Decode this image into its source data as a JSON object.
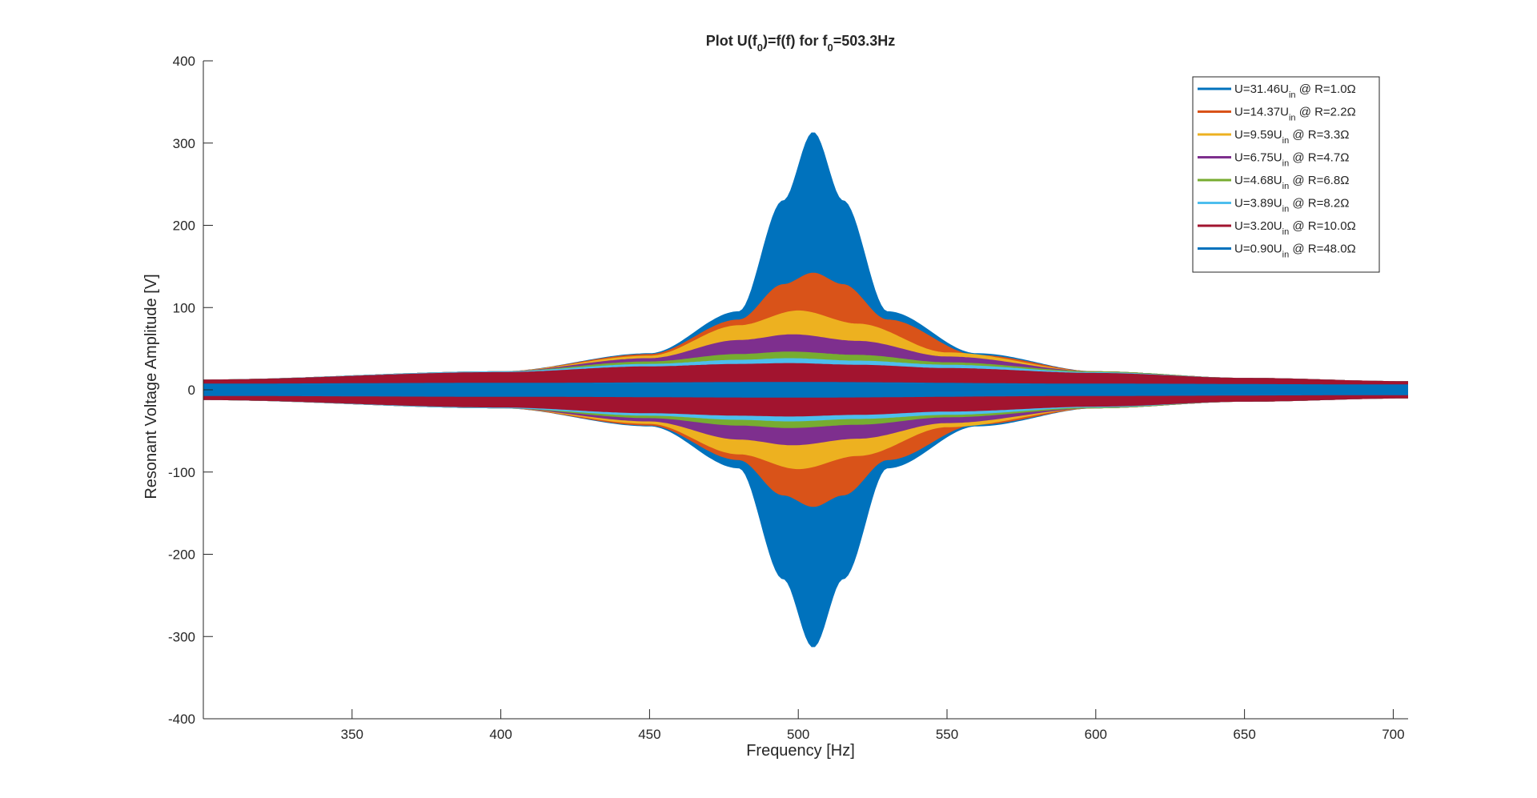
{
  "chart_data": {
    "type": "area",
    "title": {
      "pre": "Plot U(f",
      "sub1": "0",
      "mid": ")=f(f) for f",
      "sub2": "0",
      "post": "=503.3Hz"
    },
    "xlabel": "Frequency [Hz]",
    "ylabel": "Resonant Voltage Amplitude [V]",
    "xlim": [
      300,
      705
    ],
    "ylim": [
      -400,
      400
    ],
    "xticks": [
      350,
      400,
      450,
      500,
      550,
      600,
      650,
      700
    ],
    "yticks": [
      400,
      300,
      200,
      100,
      0,
      -100,
      -200,
      -300,
      -400
    ],
    "f0": 503.3,
    "grid": false,
    "legend_position": "top-right",
    "series": [
      {
        "label_pre": "U=31.46U",
        "label_sub": "in",
        "label_post": " @ R=1.0Ω",
        "peak": 313,
        "peak_freq": 505,
        "color": "#0072BD",
        "envelope": [
          [
            300,
            12
          ],
          [
            400,
            22
          ],
          [
            450,
            44
          ],
          [
            480,
            95
          ],
          [
            495,
            230
          ],
          [
            505,
            313
          ],
          [
            515,
            230
          ],
          [
            530,
            95
          ],
          [
            560,
            44
          ],
          [
            600,
            22
          ],
          [
            650,
            14
          ],
          [
            705,
            10
          ]
        ]
      },
      {
        "label_pre": "U=14.37U",
        "label_sub": "in",
        "label_post": " @ R=2.2Ω",
        "peak": 142,
        "peak_freq": 505,
        "color": "#D95319",
        "envelope": [
          [
            300,
            12
          ],
          [
            400,
            22
          ],
          [
            450,
            43
          ],
          [
            480,
            85
          ],
          [
            495,
            128
          ],
          [
            505,
            142
          ],
          [
            515,
            128
          ],
          [
            530,
            85
          ],
          [
            560,
            42
          ],
          [
            600,
            22
          ],
          [
            650,
            14
          ],
          [
            705,
            10
          ]
        ]
      },
      {
        "label_pre": "U=9.59U",
        "label_sub": "in",
        "label_post": " @ R=3.3Ω",
        "peak": 96,
        "peak_freq": 500,
        "color": "#EDB120",
        "envelope": [
          [
            300,
            12
          ],
          [
            400,
            22
          ],
          [
            450,
            41
          ],
          [
            480,
            78
          ],
          [
            500,
            96
          ],
          [
            520,
            80
          ],
          [
            550,
            45
          ],
          [
            600,
            22
          ],
          [
            650,
            14
          ],
          [
            705,
            10
          ]
        ]
      },
      {
        "label_pre": "U=6.75U",
        "label_sub": "in",
        "label_post": " @ R=4.7Ω",
        "peak": 67,
        "peak_freq": 498,
        "color": "#7E2F8E",
        "envelope": [
          [
            300,
            12
          ],
          [
            400,
            22
          ],
          [
            450,
            38
          ],
          [
            480,
            60
          ],
          [
            498,
            67
          ],
          [
            520,
            59
          ],
          [
            550,
            40
          ],
          [
            600,
            22
          ],
          [
            650,
            14
          ],
          [
            705,
            10
          ]
        ]
      },
      {
        "label_pre": "U=4.68U",
        "label_sub": "in",
        "label_post": " @ R=6.8Ω",
        "peak": 46,
        "peak_freq": 497,
        "color": "#77AC30",
        "envelope": [
          [
            300,
            12
          ],
          [
            400,
            22
          ],
          [
            450,
            34
          ],
          [
            480,
            43
          ],
          [
            497,
            46
          ],
          [
            520,
            42
          ],
          [
            550,
            33
          ],
          [
            600,
            22
          ],
          [
            650,
            14
          ],
          [
            705,
            10
          ]
        ]
      },
      {
        "label_pre": "U=3.89U",
        "label_sub": "in",
        "label_post": " @ R=8.2Ω",
        "peak": 38,
        "peak_freq": 497,
        "color": "#4DBEEE",
        "envelope": [
          [
            300,
            12
          ],
          [
            400,
            22
          ],
          [
            450,
            31
          ],
          [
            480,
            36
          ],
          [
            497,
            38
          ],
          [
            520,
            35
          ],
          [
            550,
            30
          ],
          [
            600,
            21
          ],
          [
            650,
            14
          ],
          [
            705,
            10
          ]
        ]
      },
      {
        "label_pre": "U=3.20U",
        "label_sub": "in",
        "label_post": " @ R=10.0Ω",
        "peak": 32,
        "peak_freq": 497,
        "color": "#A2142F",
        "envelope": [
          [
            300,
            12
          ],
          [
            400,
            21
          ],
          [
            450,
            28
          ],
          [
            480,
            31
          ],
          [
            497,
            32
          ],
          [
            520,
            30
          ],
          [
            550,
            26
          ],
          [
            600,
            20
          ],
          [
            650,
            14
          ],
          [
            705,
            10
          ]
        ]
      },
      {
        "label_pre": "U=0.90U",
        "label_sub": "in",
        "label_post": " @ R=48.0Ω",
        "peak": 9,
        "peak_freq": 500,
        "color": "#0072BD",
        "envelope": [
          [
            300,
            7
          ],
          [
            400,
            8
          ],
          [
            500,
            9
          ],
          [
            600,
            7
          ],
          [
            705,
            6
          ]
        ]
      }
    ]
  }
}
